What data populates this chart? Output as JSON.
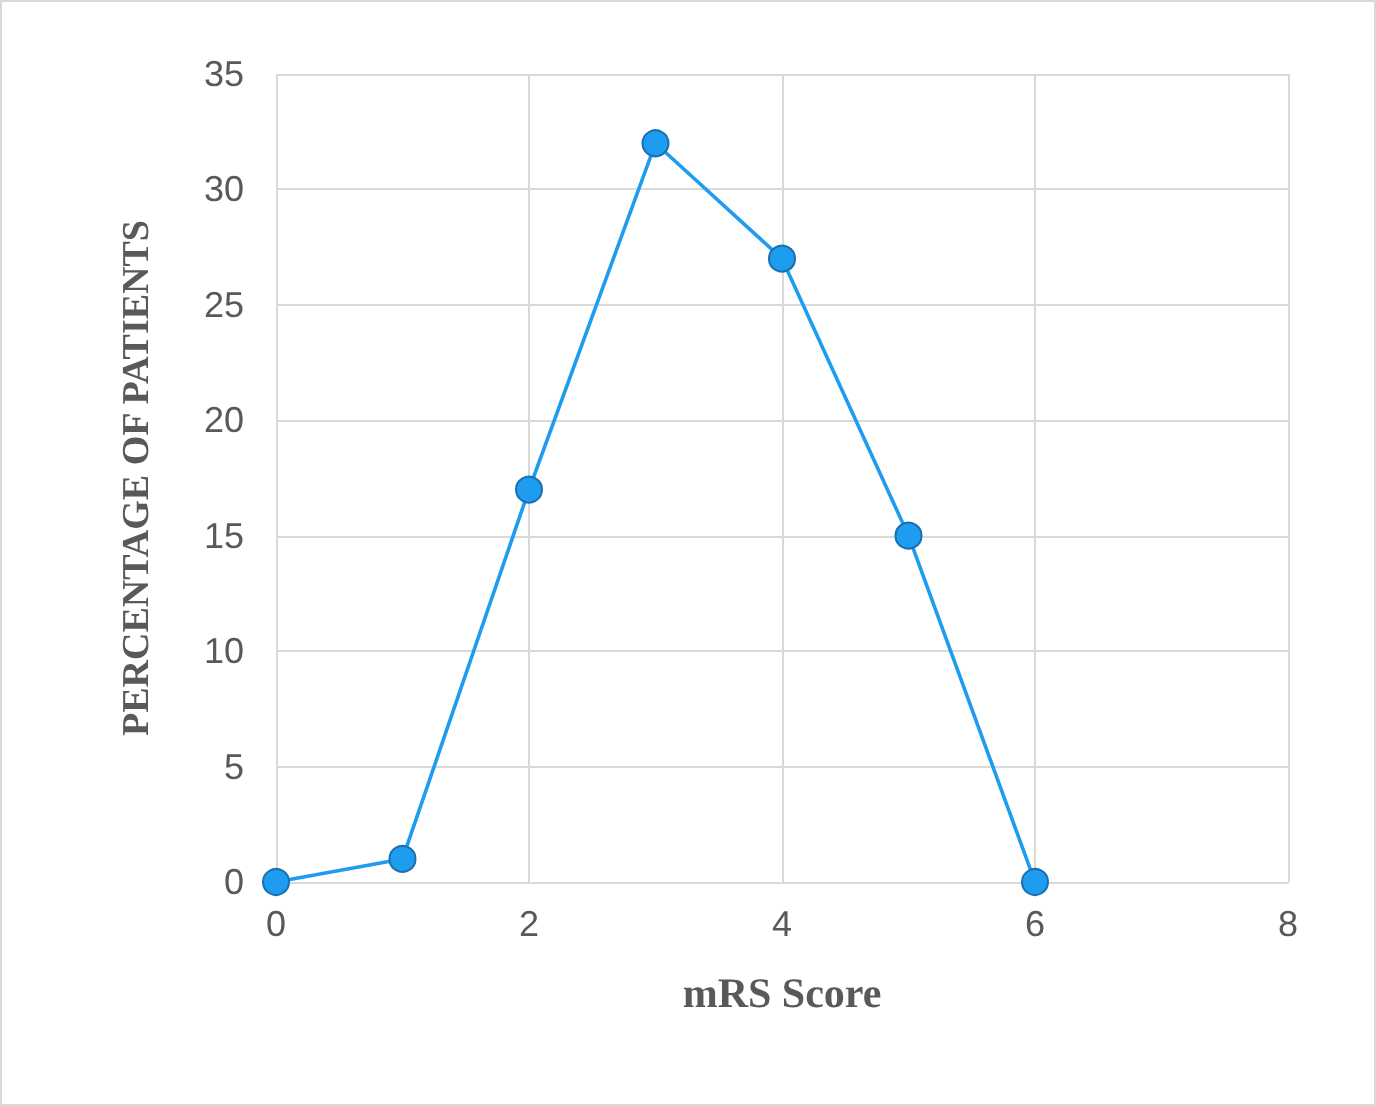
{
  "chart_data": {
    "type": "line",
    "xlabel": "mRS Score",
    "ylabel": "PERCENTAGE OF PATIENTS",
    "x": [
      0,
      1,
      2,
      3,
      4,
      5,
      6
    ],
    "series": [
      {
        "color": "#1e9cf0",
        "values": [
          0,
          1,
          17,
          32,
          27,
          15,
          0
        ]
      }
    ],
    "xlim": [
      0,
      8
    ],
    "xticks": [
      0,
      2,
      4,
      6,
      8
    ],
    "ylim": [
      0,
      35
    ],
    "yticks": [
      0,
      5,
      10,
      15,
      20,
      25,
      30,
      35
    ],
    "grid": true,
    "marker": "circle",
    "line_style": "solid"
  }
}
